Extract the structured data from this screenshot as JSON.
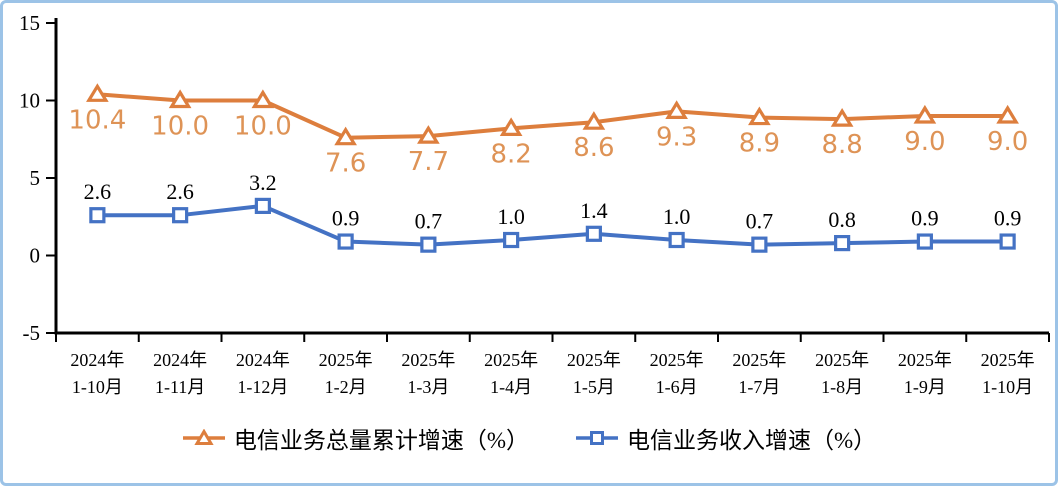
{
  "frame": {
    "border_color": "#9CC3E7",
    "background": "#FFFFFF"
  },
  "chart_data": {
    "type": "line",
    "title": "",
    "xlabel": "",
    "ylabel": "",
    "ylim": [
      -5,
      15
    ],
    "yticks": [
      15,
      10,
      5,
      0,
      -5
    ],
    "grid": false,
    "legend_position": "bottom",
    "axis_color": "#000000",
    "categories": [
      [
        "2024年",
        "1-10月"
      ],
      [
        "2024年",
        "1-11月"
      ],
      [
        "2024年",
        "1-12月"
      ],
      [
        "2025年",
        "1-2月"
      ],
      [
        "2025年",
        "1-3月"
      ],
      [
        "2025年",
        "1-4月"
      ],
      [
        "2025年",
        "1-5月"
      ],
      [
        "2025年",
        "1-6月"
      ],
      [
        "2025年",
        "1-7月"
      ],
      [
        "2025年",
        "1-8月"
      ],
      [
        "2025年",
        "1-9月"
      ],
      [
        "2025年",
        "1-10月"
      ]
    ],
    "series": [
      {
        "name": "电信业务总量累计增速（%）",
        "marker": "triangle",
        "color": "#DD7E3D",
        "label_color": "#DE9356",
        "label_position": "below",
        "label_font": "sans",
        "values": [
          10.4,
          10.0,
          10.0,
          7.6,
          7.7,
          8.2,
          8.6,
          9.3,
          8.9,
          8.8,
          9.0,
          9.0
        ]
      },
      {
        "name": "电信业务收入增速（%）",
        "marker": "square",
        "color": "#4472C4",
        "label_color": "#000000",
        "label_position": "above",
        "label_font": "serif",
        "values": [
          2.6,
          2.6,
          3.2,
          0.9,
          0.7,
          1.0,
          1.4,
          1.0,
          0.7,
          0.8,
          0.9,
          0.9
        ]
      }
    ]
  }
}
